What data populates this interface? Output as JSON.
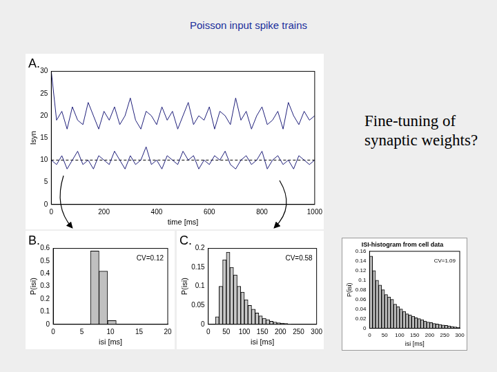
{
  "title": "Poisson input spike trains",
  "text": "Fine-tuning of synaptic weights?",
  "chart_data": [
    {
      "type": "line",
      "title": "A.",
      "xlabel": "time [ms]",
      "ylabel": "Isyn",
      "xlim": [
        0,
        1000
      ],
      "xticks": [
        0,
        200,
        400,
        600,
        800,
        1000
      ],
      "ylim": [
        0,
        30
      ],
      "yticks": [
        0,
        5,
        10,
        15,
        20,
        25,
        30
      ],
      "grid": false,
      "series": [
        {
          "color": "#1f1f7a",
          "line_style": "solid",
          "x": [
            0,
            20,
            40,
            60,
            80,
            100,
            120,
            140,
            160,
            180,
            200,
            220,
            240,
            260,
            280,
            300,
            320,
            340,
            360,
            380,
            400,
            420,
            440,
            460,
            480,
            500,
            520,
            540,
            560,
            580,
            600,
            620,
            640,
            660,
            680,
            700,
            720,
            740,
            760,
            780,
            800,
            820,
            840,
            860,
            880,
            900,
            920,
            940,
            960,
            980,
            1000
          ],
          "values": [
            30,
            19,
            21,
            17,
            22,
            19,
            18,
            23,
            20,
            17,
            21,
            19,
            22,
            18,
            20,
            24,
            19,
            17,
            21,
            20,
            18,
            22,
            19,
            21,
            17,
            20,
            23,
            18,
            20,
            19,
            22,
            17,
            21,
            20,
            18,
            24,
            19,
            21,
            17,
            20,
            22,
            18,
            19,
            21,
            17,
            23,
            20,
            18,
            21,
            19,
            20
          ]
        },
        {
          "color": "#1f1f7a",
          "line_style": "solid",
          "x": [
            0,
            20,
            40,
            60,
            80,
            100,
            120,
            140,
            160,
            180,
            200,
            220,
            240,
            260,
            280,
            300,
            320,
            340,
            360,
            380,
            400,
            420,
            440,
            460,
            480,
            500,
            520,
            540,
            560,
            580,
            600,
            620,
            640,
            660,
            680,
            700,
            720,
            740,
            760,
            780,
            800,
            820,
            840,
            860,
            880,
            900,
            920,
            940,
            960,
            980,
            1000
          ],
          "values": [
            10,
            9,
            11,
            8,
            10,
            12,
            9,
            10,
            8,
            11,
            10,
            9,
            12,
            10,
            8,
            11,
            9,
            10,
            13,
            9,
            10,
            8,
            11,
            10,
            9,
            12,
            10,
            11,
            8,
            10,
            9,
            11,
            10,
            12,
            9,
            8,
            10,
            11,
            9,
            10,
            12,
            8,
            10,
            11,
            9,
            10,
            8,
            11,
            10,
            9,
            10
          ]
        },
        {
          "color": "#000000",
          "line_style": "dashed",
          "x": [
            0,
            1000
          ],
          "values": [
            10,
            10
          ]
        }
      ]
    },
    {
      "type": "histogram",
      "title": "B.",
      "xlabel": "isi [ms]",
      "ylabel": "P(isi)",
      "annotation": "CV=0.12",
      "xlim": [
        0,
        20
      ],
      "xticks": [
        0,
        5,
        10,
        15,
        20
      ],
      "ylim": [
        0,
        0.6
      ],
      "yticks": [
        0,
        0.1,
        0.2,
        0.3,
        0.4,
        0.5,
        0.6
      ],
      "grid": false,
      "color": "#c0c0c0",
      "bins": [
        6.5,
        8,
        9.5,
        11
      ],
      "values": [
        0.58,
        0.42,
        0.03
      ]
    },
    {
      "type": "histogram",
      "title": "C.",
      "xlabel": "isi [ms]",
      "ylabel": "P(isi)",
      "annotation": "CV=0.58",
      "xlim": [
        0,
        300
      ],
      "xticks": [
        0,
        50,
        100,
        150,
        200,
        250,
        300
      ],
      "ylim": [
        0,
        0.2
      ],
      "yticks": [
        0,
        0.05,
        0.1,
        0.15,
        0.2
      ],
      "grid": false,
      "color": "#c8c8c8",
      "bins": [
        20,
        30,
        40,
        50,
        60,
        70,
        80,
        90,
        100,
        110,
        120,
        130,
        140,
        150,
        160,
        170,
        180,
        190,
        200,
        210,
        220,
        230
      ],
      "values": [
        0.02,
        0.1,
        0.17,
        0.19,
        0.15,
        0.13,
        0.1,
        0.085,
        0.065,
        0.05,
        0.04,
        0.03,
        0.022,
        0.016,
        0.012,
        0.008,
        0.006,
        0.004,
        0.003,
        0.002,
        0.001
      ]
    },
    {
      "type": "histogram",
      "title": "ISI-histogram from cell data",
      "xlabel": "isi [ms]",
      "ylabel": "P(isi)",
      "annotation": "CV=1.09",
      "xlim": [
        0,
        300
      ],
      "xticks": [
        0,
        50,
        100,
        150,
        200,
        250,
        300
      ],
      "ylim": [
        0,
        0.16
      ],
      "yticks": [
        0,
        0.02,
        0.04,
        0.06,
        0.08,
        0.1,
        0.12,
        0.14,
        0.16
      ],
      "grid": false,
      "color": "#bdbdbd",
      "bins": [
        0,
        10,
        20,
        30,
        40,
        50,
        60,
        70,
        80,
        90,
        100,
        110,
        120,
        130,
        140,
        150,
        160,
        170,
        180,
        190,
        200,
        210,
        220,
        230,
        240,
        250,
        260,
        270,
        280,
        290,
        300
      ],
      "values": [
        0.15,
        0.12,
        0.1,
        0.09,
        0.08,
        0.07,
        0.065,
        0.06,
        0.05,
        0.045,
        0.04,
        0.035,
        0.03,
        0.028,
        0.025,
        0.022,
        0.02,
        0.018,
        0.015,
        0.013,
        0.012,
        0.01,
        0.009,
        0.008,
        0.007,
        0.006,
        0.005,
        0.004,
        0.003,
        0.002
      ]
    }
  ]
}
